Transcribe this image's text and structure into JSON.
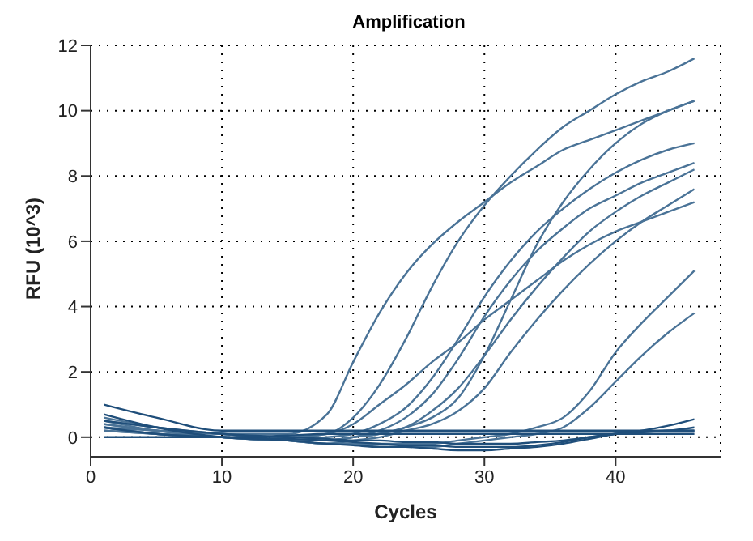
{
  "chart_data": {
    "type": "line",
    "title": "Amplification",
    "xlabel": "Cycles",
    "ylabel": "RFU (10^3)",
    "x": [
      1,
      5,
      10,
      15,
      18,
      20,
      22,
      24,
      26,
      28,
      30,
      32,
      34,
      36,
      38,
      40,
      42,
      44,
      46
    ],
    "xlim": [
      0,
      48
    ],
    "xticks": [
      0,
      10,
      20,
      30,
      40
    ],
    "ylim": [
      -0.6,
      12
    ],
    "yticks": [
      0,
      2,
      4,
      6,
      8,
      10,
      12
    ],
    "grid": true,
    "legend": false,
    "series": [
      {
        "color": "#4a7397",
        "values": [
          0.6,
          0.3,
          0.1,
          0.1,
          0.7,
          2.3,
          3.8,
          5.0,
          5.9,
          6.6,
          7.2,
          7.8,
          8.3,
          8.8,
          9.1,
          9.4,
          9.7,
          10.0,
          10.3
        ]
      },
      {
        "color": "#4a7397",
        "values": [
          0.5,
          0.3,
          0.1,
          0.0,
          0.1,
          0.6,
          1.6,
          3.0,
          4.6,
          6.0,
          7.1,
          8.0,
          8.8,
          9.5,
          10.0,
          10.5,
          10.9,
          11.2,
          11.6
        ]
      },
      {
        "color": "#4a7397",
        "values": [
          0.4,
          0.2,
          0.1,
          0.0,
          0.1,
          0.4,
          1.0,
          1.6,
          2.3,
          2.9,
          3.6,
          4.2,
          4.8,
          5.4,
          5.9,
          6.3,
          6.6,
          6.9,
          7.2
        ]
      },
      {
        "color": "#4a7397",
        "values": [
          0.3,
          0.2,
          0.1,
          -0.1,
          -0.1,
          0.0,
          0.1,
          0.3,
          0.6,
          1.2,
          2.5,
          4.2,
          5.9,
          7.2,
          8.2,
          9.0,
          9.6,
          10.0,
          10.3
        ]
      },
      {
        "color": "#4a7397",
        "values": [
          0.5,
          0.2,
          0.0,
          -0.1,
          0.0,
          0.1,
          0.4,
          0.9,
          1.8,
          3.0,
          4.3,
          5.4,
          6.3,
          7.0,
          7.6,
          8.1,
          8.5,
          8.8,
          9.0
        ]
      },
      {
        "color": "#4a7397",
        "values": [
          0.4,
          0.2,
          0.0,
          -0.1,
          -0.1,
          0.0,
          0.2,
          0.6,
          1.3,
          2.4,
          3.7,
          4.8,
          5.7,
          6.4,
          7.0,
          7.4,
          7.8,
          8.1,
          8.4
        ]
      },
      {
        "color": "#4a7397",
        "values": [
          0.3,
          0.1,
          0.0,
          -0.1,
          -0.1,
          0.0,
          0.1,
          0.3,
          0.8,
          1.5,
          2.5,
          3.6,
          4.6,
          5.5,
          6.3,
          6.9,
          7.4,
          7.8,
          8.2
        ]
      },
      {
        "color": "#4a7397",
        "values": [
          0.3,
          0.1,
          0.0,
          -0.1,
          -0.2,
          -0.1,
          0.0,
          0.2,
          0.4,
          0.8,
          1.5,
          2.6,
          3.6,
          4.5,
          5.3,
          6.0,
          6.6,
          7.1,
          7.6
        ]
      },
      {
        "color": "#4a7397",
        "values": [
          0.2,
          0.1,
          0.0,
          -0.1,
          -0.2,
          -0.2,
          -0.2,
          -0.2,
          -0.2,
          -0.1,
          0.0,
          0.1,
          0.3,
          0.6,
          1.4,
          2.6,
          3.5,
          4.3,
          5.1
        ]
      },
      {
        "color": "#4a7397",
        "values": [
          0.2,
          0.1,
          0.0,
          -0.1,
          -0.2,
          -0.2,
          -0.3,
          -0.3,
          -0.3,
          -0.2,
          -0.1,
          0.0,
          0.1,
          0.3,
          0.9,
          1.7,
          2.5,
          3.2,
          3.8
        ]
      },
      {
        "color": "#1f4e7a",
        "values": [
          1.0,
          0.6,
          0.2,
          0.2,
          0.2,
          0.2,
          0.2,
          0.2,
          0.2,
          0.2,
          0.2,
          0.2,
          0.2,
          0.2,
          0.2,
          0.2,
          0.2,
          0.2,
          0.2
        ]
      },
      {
        "color": "#1f4e7a",
        "values": [
          0.7,
          0.3,
          0.0,
          -0.1,
          -0.2,
          -0.25,
          -0.3,
          -0.3,
          -0.35,
          -0.4,
          -0.4,
          -0.35,
          -0.3,
          -0.2,
          -0.05,
          0.1,
          0.2,
          0.35,
          0.55
        ]
      },
      {
        "color": "#1f4e7a",
        "values": [
          0.3,
          0.1,
          0.0,
          -0.05,
          -0.1,
          -0.15,
          -0.2,
          -0.25,
          -0.25,
          -0.3,
          -0.3,
          -0.3,
          -0.25,
          -0.15,
          0.0,
          0.1,
          0.15,
          0.2,
          0.3
        ]
      },
      {
        "color": "#1f4e7a",
        "values": [
          0.0,
          0.0,
          0.0,
          0.05,
          0.1,
          0.1,
          0.1,
          0.1,
          0.1,
          0.1,
          0.1,
          0.1,
          0.1,
          0.1,
          0.1,
          0.1,
          0.1,
          0.1,
          0.1
        ]
      },
      {
        "color": "#1f4e7a",
        "values": [
          0.5,
          0.3,
          0.1,
          0.0,
          -0.05,
          -0.1,
          -0.1,
          -0.15,
          -0.15,
          -0.2,
          -0.2,
          -0.2,
          -0.15,
          -0.1,
          0.0,
          0.1,
          0.15,
          0.2,
          0.2
        ]
      }
    ]
  }
}
